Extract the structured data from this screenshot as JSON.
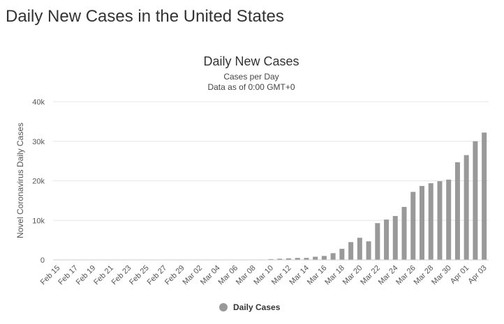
{
  "page": {
    "heading": "Daily New Cases in the United States"
  },
  "chart_data": {
    "type": "bar",
    "title": "Daily New Cases",
    "subtitle": "Cases per Day",
    "subtitle2": "Data as of 0:00 GMT+0",
    "xlabel": "",
    "ylabel": "Novel Coronavirus Daily Cases",
    "ylim": [
      0,
      40000
    ],
    "yticks": [
      0,
      10000,
      20000,
      30000,
      40000
    ],
    "ytick_labels": [
      "0",
      "10k",
      "20k",
      "30k",
      "40k"
    ],
    "categories": [
      "Feb 15",
      "Feb 16",
      "Feb 17",
      "Feb 18",
      "Feb 19",
      "Feb 20",
      "Feb 21",
      "Feb 22",
      "Feb 23",
      "Feb 24",
      "Feb 25",
      "Feb 26",
      "Feb 27",
      "Feb 28",
      "Feb 29",
      "Mar 01",
      "Mar 02",
      "Mar 03",
      "Mar 04",
      "Mar 05",
      "Mar 06",
      "Mar 07",
      "Mar 08",
      "Mar 09",
      "Mar 10",
      "Mar 11",
      "Mar 12",
      "Mar 13",
      "Mar 14",
      "Mar 15",
      "Mar 16",
      "Mar 17",
      "Mar 18",
      "Mar 19",
      "Mar 20",
      "Mar 21",
      "Mar 22",
      "Mar 23",
      "Mar 24",
      "Mar 25",
      "Mar 26",
      "Mar 27",
      "Mar 28",
      "Mar 29",
      "Mar 30",
      "Mar 31",
      "Apr 01",
      "Apr 02",
      "Apr 03"
    ],
    "shown_tick_labels": [
      "Feb 15",
      "Feb 17",
      "Feb 19",
      "Feb 21",
      "Feb 23",
      "Feb 25",
      "Feb 27",
      "Feb 29",
      "Mar 02",
      "Mar 04",
      "Mar 06",
      "Mar 08",
      "Mar 10",
      "Mar 12",
      "Mar 14",
      "Mar 16",
      "Mar 18",
      "Mar 20",
      "Mar 22",
      "Mar 24",
      "Mar 26",
      "Mar 28",
      "Mar 30",
      "Apr 01",
      "Apr 03"
    ],
    "series": [
      {
        "name": "Daily Cases",
        "color": "#999999",
        "values": [
          0,
          0,
          0,
          0,
          0,
          0,
          0,
          0,
          0,
          0,
          0,
          0,
          0,
          0,
          0,
          0,
          0,
          0,
          0,
          0,
          0,
          0,
          0,
          100,
          200,
          300,
          400,
          500,
          500,
          800,
          1000,
          1700,
          2800,
          4500,
          5600,
          4700,
          9300,
          10200,
          11100,
          13400,
          17200,
          18700,
          19400,
          19900,
          20300,
          24700,
          26500,
          30000,
          32200
        ]
      }
    ],
    "grid": true,
    "legend_position": "bottom-center"
  }
}
